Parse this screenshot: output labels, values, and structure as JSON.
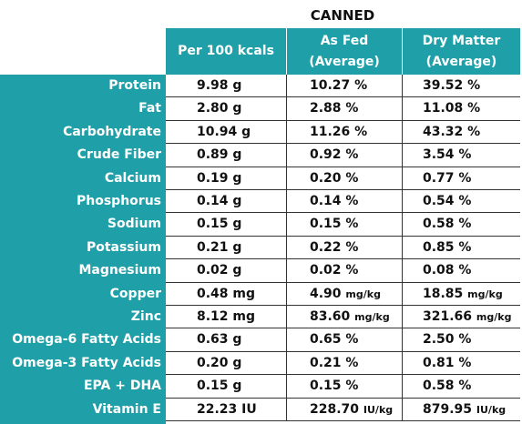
{
  "title": "CANNED",
  "headers": [
    "Per 100 kcals",
    "As Fed\n(Average)",
    "Dry Matter\n(Average)"
  ],
  "rows": [
    {
      "label": "Protein",
      "per100": "9.98",
      "per100_unit": "g",
      "asfed": "10.27",
      "asfed_unit": "%",
      "dry": "39.52",
      "dry_unit": "%"
    },
    {
      "label": "Fat",
      "per100": "2.80",
      "per100_unit": "g",
      "asfed": "2.88",
      "asfed_unit": "%",
      "dry": "11.08",
      "dry_unit": "%"
    },
    {
      "label": "Carbohydrate",
      "per100": "10.94",
      "per100_unit": "g",
      "asfed": "11.26",
      "asfed_unit": "%",
      "dry": "43.32",
      "dry_unit": "%"
    },
    {
      "label": "Crude Fiber",
      "per100": "0.89",
      "per100_unit": "g",
      "asfed": "0.92",
      "asfed_unit": "%",
      "dry": "3.54",
      "dry_unit": "%"
    },
    {
      "label": "Calcium",
      "per100": "0.19",
      "per100_unit": "g",
      "asfed": "0.20",
      "asfed_unit": "%",
      "dry": "0.77",
      "dry_unit": "%"
    },
    {
      "label": "Phosphorus",
      "per100": "0.14",
      "per100_unit": "g",
      "asfed": "0.14",
      "asfed_unit": "%",
      "dry": "0.54",
      "dry_unit": "%"
    },
    {
      "label": "Sodium",
      "per100": "0.15",
      "per100_unit": "g",
      "asfed": "0.15",
      "asfed_unit": "%",
      "dry": "0.58",
      "dry_unit": "%"
    },
    {
      "label": "Potassium",
      "per100": "0.21",
      "per100_unit": "g",
      "asfed": "0.22",
      "asfed_unit": "%",
      "dry": "0.85",
      "dry_unit": "%"
    },
    {
      "label": "Magnesium",
      "per100": "0.02",
      "per100_unit": "g",
      "asfed": "0.02",
      "asfed_unit": "%",
      "dry": "0.08",
      "dry_unit": "%"
    },
    {
      "label": "Copper",
      "per100": "0.48",
      "per100_unit": "mg",
      "asfed": "4.90",
      "asfed_unit": "mg/kg",
      "dry": "18.85",
      "dry_unit": "mg/kg"
    },
    {
      "label": "Zinc",
      "per100": "8.12",
      "per100_unit": "mg",
      "asfed": "83.60",
      "asfed_unit": "mg/kg",
      "dry": "321.66",
      "dry_unit": "mg/kg"
    },
    {
      "label": "Omega-6 Fatty Acids",
      "per100": "0.63",
      "per100_unit": "g",
      "asfed": "0.65",
      "asfed_unit": "%",
      "dry": "2.50",
      "dry_unit": "%"
    },
    {
      "label": "Omega-3 Fatty Acids",
      "per100": "0.20",
      "per100_unit": "g",
      "asfed": "0.21",
      "asfed_unit": "%",
      "dry": "0.81",
      "dry_unit": "%"
    },
    {
      "label": "EPA + DHA",
      "per100": "0.15",
      "per100_unit": "g",
      "asfed": "0.15",
      "asfed_unit": "%",
      "dry": "0.58",
      "dry_unit": "%"
    },
    {
      "label": "Vitamin E",
      "per100": "22.23",
      "per100_unit": "IU",
      "asfed": "228.70",
      "asfed_unit": "IU/kg",
      "dry": "879.95",
      "dry_unit": "IU/kg"
    }
  ],
  "colors": {
    "teal": "#1f9fa8"
  }
}
